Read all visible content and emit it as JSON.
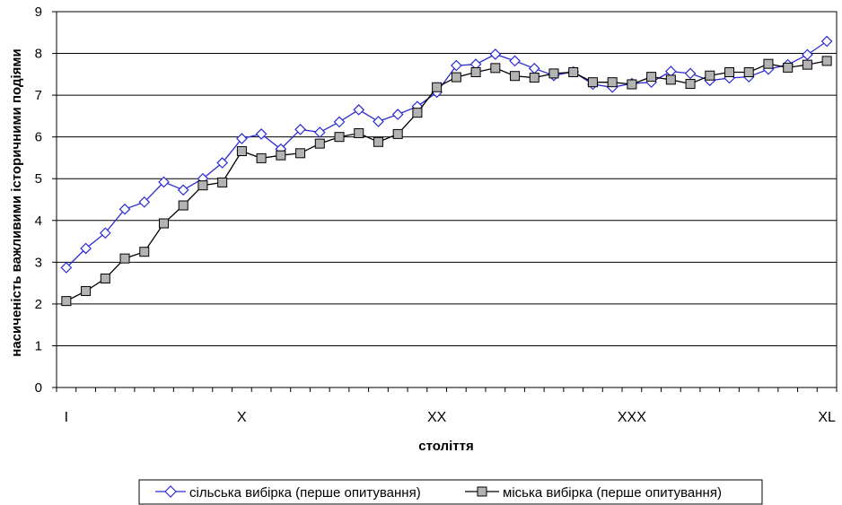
{
  "chart_data": {
    "type": "line",
    "title": "",
    "xlabel": "століття",
    "ylabel": "насиченість важливими історичними подіями",
    "ylim": [
      0,
      9
    ],
    "yticks": [
      0,
      1,
      2,
      3,
      4,
      5,
      6,
      7,
      8,
      9
    ],
    "xlim": [
      1,
      40
    ],
    "xticks": [
      {
        "x": 1,
        "label": "I"
      },
      {
        "x": 10,
        "label": "X"
      },
      {
        "x": 20,
        "label": "XX"
      },
      {
        "x": 30,
        "label": "XXX"
      },
      {
        "x": 40,
        "label": "XL"
      }
    ],
    "grid": "horizontal",
    "legend_position": "bottom",
    "x": [
      1,
      2,
      3,
      4,
      5,
      6,
      7,
      8,
      9,
      10,
      11,
      12,
      13,
      14,
      15,
      16,
      17,
      18,
      19,
      20,
      21,
      22,
      23,
      24,
      25,
      26,
      27,
      28,
      29,
      30,
      31,
      32,
      33,
      34,
      35,
      36,
      37,
      38,
      39,
      40
    ],
    "series": [
      {
        "name": "сільська вибірка (перше опитування)",
        "marker": "diamond",
        "color": "#2b2bd4",
        "marker_fill": "#ffffff",
        "values": [
          2.87,
          3.33,
          3.7,
          4.27,
          4.44,
          4.92,
          4.73,
          5.0,
          5.38,
          5.96,
          6.07,
          5.71,
          6.18,
          6.11,
          6.36,
          6.65,
          6.37,
          6.54,
          6.73,
          7.07,
          7.71,
          7.74,
          7.98,
          7.82,
          7.64,
          7.47,
          7.56,
          7.26,
          7.19,
          7.28,
          7.31,
          7.57,
          7.52,
          7.35,
          7.41,
          7.44,
          7.62,
          7.73,
          7.97,
          8.29
        ]
      },
      {
        "name": "міська вибірка (перше опитування)",
        "marker": "square",
        "color": "#000000",
        "marker_fill": "#b3b3b3",
        "values": [
          2.07,
          2.31,
          2.61,
          3.09,
          3.25,
          3.93,
          4.36,
          4.84,
          4.91,
          5.66,
          5.49,
          5.56,
          5.61,
          5.84,
          6.0,
          6.09,
          5.88,
          6.07,
          6.58,
          7.19,
          7.43,
          7.55,
          7.65,
          7.46,
          7.42,
          7.52,
          7.55,
          7.31,
          7.31,
          7.26,
          7.44,
          7.37,
          7.27,
          7.47,
          7.55,
          7.55,
          7.75,
          7.66,
          7.73,
          7.82
        ]
      }
    ]
  }
}
